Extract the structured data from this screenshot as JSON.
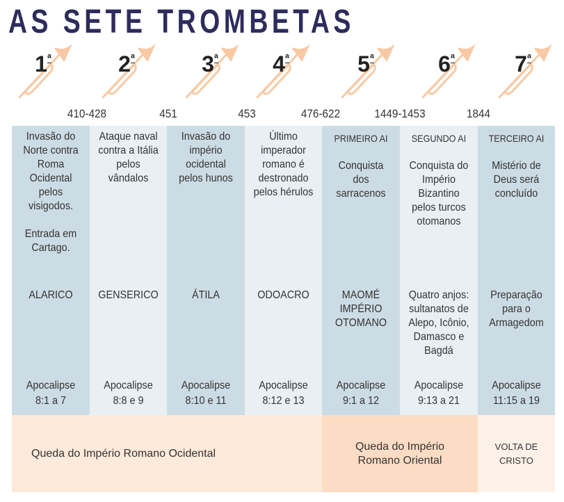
{
  "title": "AS SETE TROMBETAS",
  "colors": {
    "title": "#2f2b5c",
    "trumpet": "#f8c9a4",
    "col_dark": "#ccdce4",
    "col_light": "#e8f0f4",
    "band_west": "#fdeadb",
    "band_east": "#fcdcc4",
    "band_return": "#fef1e8"
  },
  "trumpets": [
    {
      "number": "1",
      "suffix": "ª"
    },
    {
      "number": "2",
      "suffix": "ª"
    },
    {
      "number": "3",
      "suffix": "ª"
    },
    {
      "number": "4",
      "suffix": "ª"
    },
    {
      "number": "5",
      "suffix": "ª"
    },
    {
      "number": "6",
      "suffix": "ª"
    },
    {
      "number": "7",
      "suffix": "ª"
    }
  ],
  "dates": [
    "410-428",
    "451",
    "453",
    "476-622",
    "1449-1453",
    "1844"
  ],
  "columns": [
    {
      "header": "",
      "description": "Invasão do Norte contra Roma Ocidental pelos visigodos.\n\nEntrada em Cartago.",
      "ruler": "ALARICO",
      "ref_book": "Apocalipse",
      "ref_verses": "8:1 a 7"
    },
    {
      "header": "",
      "description": "Ataque naval contra a Itália pelos vândalos",
      "ruler": "GENSERICO",
      "ref_book": "Apocalipse",
      "ref_verses": "8:8 e 9"
    },
    {
      "header": "",
      "description": "Invasão do império ocidental pelos hunos",
      "ruler": "ÁTILA",
      "ref_book": "Apocalipse",
      "ref_verses": "8:10 e 11"
    },
    {
      "header": "",
      "description": "Último imperador romano é destronado pelos hérulos",
      "ruler": "ODOACRO",
      "ref_book": "Apocalipse",
      "ref_verses": "8:12 e 13"
    },
    {
      "header": "PRIMEIRO AI",
      "description": "Conquista dos sarracenos",
      "ruler": "MAOMÉ IMPÉRIO OTOMANO",
      "ref_book": "Apocalipse",
      "ref_verses": "9:1 a 12"
    },
    {
      "header": "SEGUNDO AI",
      "description": "Conquista do Império Bizantino pelos turcos otomanos",
      "ruler": "Quatro anjos: sultanatos de Alepo, Icônio, Damasco e Bagdá",
      "ref_book": "Apocalipse",
      "ref_verses": "9:13 a 21"
    },
    {
      "header": "TERCEIRO AI",
      "description": "Mistério de Deus será concluído",
      "ruler": "Preparação para o Armagedom",
      "ref_book": "Apocalipse",
      "ref_verses": "11:15 a 19"
    }
  ],
  "bands": {
    "west": "Queda do Império Romano Ocidental",
    "east": "Queda do Império Romano Oriental",
    "return": "VOLTA DE CRISTO"
  }
}
